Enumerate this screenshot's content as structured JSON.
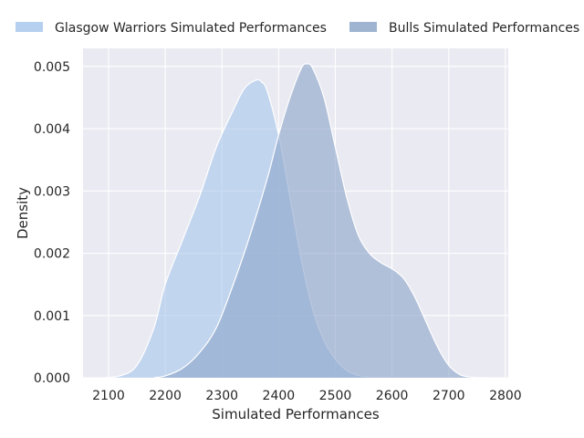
{
  "chart_data": {
    "type": "area",
    "xlabel": "Simulated Performances",
    "ylabel": "Density",
    "xlim": [
      2055,
      2805
    ],
    "ylim": [
      0,
      0.00529
    ],
    "x_ticks": [
      2100,
      2200,
      2300,
      2400,
      2500,
      2600,
      2700,
      2800
    ],
    "y_ticks": [
      0,
      0.001,
      0.002,
      0.003,
      0.004,
      0.005
    ],
    "x_tick_labels": [
      "2100",
      "2200",
      "2300",
      "2400",
      "2500",
      "2600",
      "2700",
      "2800"
    ],
    "y_tick_labels": [
      "0.000",
      "0.001",
      "0.002",
      "0.003",
      "0.004",
      "0.005"
    ],
    "grid": true,
    "legend_position": "top",
    "series": [
      {
        "name": "Glasgow Warriors Simulated Performances",
        "color": "#a9c8ec",
        "x": [
          2090,
          2120,
          2150,
          2180,
          2200,
          2230,
          2260,
          2290,
          2320,
          2340,
          2360,
          2370,
          2380,
          2400,
          2420,
          2440,
          2460,
          2480,
          2500,
          2520,
          2540,
          2560,
          2580,
          2600
        ],
        "y": [
          0,
          3e-05,
          0.0002,
          0.0008,
          0.0015,
          0.0022,
          0.0029,
          0.0037,
          0.0043,
          0.00465,
          0.00478,
          0.00475,
          0.0046,
          0.0039,
          0.0029,
          0.0019,
          0.0011,
          0.0006,
          0.0003,
          0.00012,
          4e-05,
          1e-05,
          3e-06,
          0
        ]
      },
      {
        "name": "Bulls Simulated Performances",
        "color": "#8ea7c9",
        "x": [
          2180,
          2200,
          2230,
          2260,
          2290,
          2320,
          2350,
          2380,
          2400,
          2420,
          2440,
          2450,
          2460,
          2480,
          2500,
          2520,
          2540,
          2560,
          2580,
          2600,
          2620,
          2640,
          2660,
          2680,
          2700,
          2720,
          2740,
          2760,
          2770
        ],
        "y": [
          0,
          3e-05,
          0.00015,
          0.0004,
          0.0008,
          0.0015,
          0.0023,
          0.0032,
          0.0039,
          0.0045,
          0.00497,
          0.00504,
          0.00497,
          0.0045,
          0.0037,
          0.0029,
          0.0023,
          0.002,
          0.00185,
          0.00175,
          0.0016,
          0.0013,
          0.0009,
          0.0005,
          0.0002,
          5e-05,
          1e-05,
          2e-06,
          0
        ]
      }
    ]
  }
}
